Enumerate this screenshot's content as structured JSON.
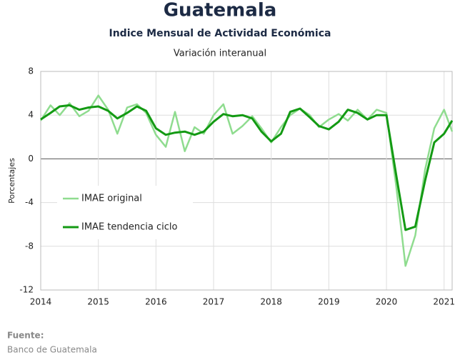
{
  "chart_data": {
    "type": "line",
    "title": "Guatemala",
    "subtitle": "Indice Mensual de  Actividad Económica",
    "caption": "Variación interanual",
    "y_label": "Porcentajes",
    "source_label": "Fuente:",
    "source": "Banco de Guatemala",
    "x": [
      2014,
      2014.17,
      2014.33,
      2014.5,
      2014.67,
      2014.83,
      2015,
      2015.17,
      2015.33,
      2015.5,
      2015.67,
      2015.83,
      2016,
      2016.17,
      2016.33,
      2016.5,
      2016.67,
      2016.83,
      2017,
      2017.17,
      2017.33,
      2017.5,
      2017.67,
      2017.83,
      2018,
      2018.17,
      2018.33,
      2018.5,
      2018.67,
      2018.83,
      2019,
      2019.17,
      2019.33,
      2019.5,
      2019.67,
      2019.83,
      2020,
      2020.17,
      2020.33,
      2020.5,
      2020.67,
      2020.83,
      2021,
      2021.14
    ],
    "series": [
      {
        "name": "IMAE original",
        "color": "#8fdc8f",
        "width": 2.5,
        "values": [
          3.5,
          4.9,
          4.0,
          5.1,
          3.9,
          4.4,
          5.8,
          4.5,
          2.3,
          4.7,
          5.0,
          4.2,
          2.2,
          1.1,
          4.3,
          0.7,
          2.9,
          2.3,
          4.0,
          5.0,
          2.3,
          3.0,
          3.9,
          2.8,
          1.5,
          2.9,
          4.0,
          4.6,
          4.0,
          2.9,
          3.6,
          4.1,
          3.5,
          4.5,
          3.6,
          4.5,
          4.2,
          -2.5,
          -9.8,
          -7.0,
          -1.0,
          2.8,
          4.5,
          2.5
        ]
      },
      {
        "name": "IMAE tendencia ciclo",
        "color": "#139a13",
        "width": 3,
        "values": [
          3.6,
          4.2,
          4.8,
          4.9,
          4.5,
          4.7,
          4.8,
          4.4,
          3.7,
          4.2,
          4.8,
          4.4,
          2.8,
          2.2,
          2.4,
          2.5,
          2.2,
          2.5,
          3.4,
          4.1,
          3.9,
          4.0,
          3.7,
          2.5,
          1.6,
          2.3,
          4.3,
          4.6,
          3.8,
          3.0,
          2.7,
          3.4,
          4.5,
          4.2,
          3.6,
          4.0,
          4.0,
          -1.5,
          -6.5,
          -6.2,
          -2.0,
          1.5,
          2.3,
          3.5
        ]
      }
    ],
    "xlim": [
      2014,
      2021.14
    ],
    "xticks": [
      2014,
      2015,
      2016,
      2017,
      2018,
      2019,
      2020,
      2021
    ],
    "ylim": [
      -12,
      8
    ],
    "yticks": [
      -12,
      -8,
      -4,
      0,
      4,
      8
    ],
    "grid": true
  }
}
